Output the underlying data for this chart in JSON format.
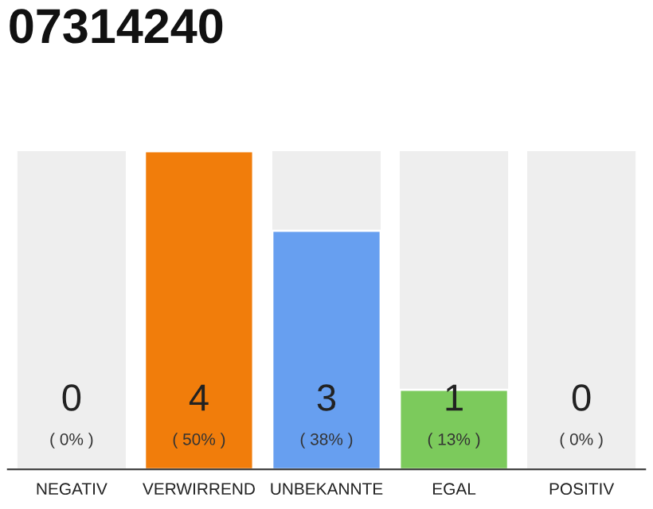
{
  "chart_data": {
    "type": "bar",
    "title": "07314240",
    "categories": [
      "NEGATIV",
      "VERWIRREND",
      "UNBEKANNTE",
      "EGAL",
      "POSITIV"
    ],
    "values": [
      0,
      4,
      3,
      1,
      0
    ],
    "colors": [
      null,
      "#f17d0b",
      "#679ff0",
      "#7cca5c",
      null
    ],
    "value_labels": [
      "0",
      "4",
      "3",
      "1",
      "0"
    ],
    "annotations": [
      "( 0% )",
      "( 50% )",
      "( 38% )",
      "( 13% )",
      "( 0% )"
    ],
    "grid": false,
    "legend": false
  }
}
